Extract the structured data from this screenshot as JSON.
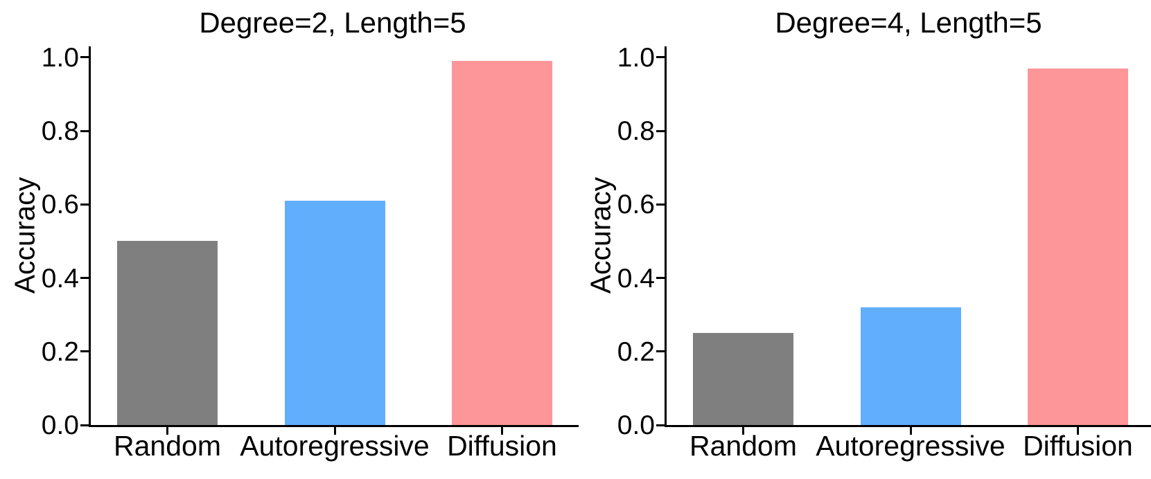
{
  "figure": {
    "background_color": "#ffffff",
    "text_color": "#000000",
    "axis_color": "#000000"
  },
  "chart_data": [
    {
      "type": "bar",
      "title": "Degree=2, Length=5",
      "xlabel": "",
      "ylabel": "Accuracy",
      "categories": [
        "Random",
        "Autoregressive",
        "Diffusion"
      ],
      "values": [
        0.5,
        0.61,
        0.99
      ],
      "bar_colors": [
        "#7f7f7f",
        "#61AEFD",
        "#FD9698"
      ],
      "yticks": [
        0.0,
        0.2,
        0.4,
        0.6,
        0.8,
        1.0
      ],
      "ytick_labels": [
        "0.0",
        "0.2",
        "0.4",
        "0.6",
        "0.8",
        "1.0"
      ],
      "ylim": [
        0.0,
        1.03
      ],
      "grid": false,
      "legend": null
    },
    {
      "type": "bar",
      "title": "Degree=4, Length=5",
      "xlabel": "",
      "ylabel": "Accuracy",
      "categories": [
        "Random",
        "Autoregressive",
        "Diffusion"
      ],
      "values": [
        0.25,
        0.32,
        0.97
      ],
      "bar_colors": [
        "#7f7f7f",
        "#61AEFD",
        "#FD9698"
      ],
      "yticks": [
        0.0,
        0.2,
        0.4,
        0.6,
        0.8,
        1.0
      ],
      "ytick_labels": [
        "0.0",
        "0.2",
        "0.4",
        "0.6",
        "0.8",
        "1.0"
      ],
      "ylim": [
        0.0,
        1.03
      ],
      "grid": false,
      "legend": null
    }
  ]
}
